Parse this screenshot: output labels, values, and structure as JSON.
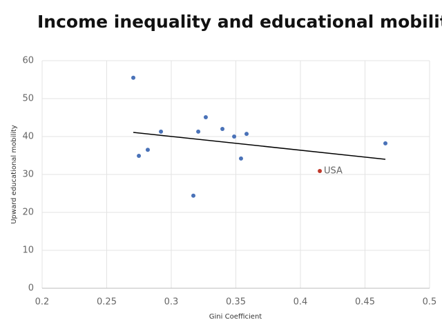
{
  "chart_data": {
    "type": "scatter",
    "title": "Income inequality and educational mobility",
    "x_label": "Gini Coefficient",
    "y_label": "Upward educational mobility",
    "xlim": [
      0.2,
      0.5
    ],
    "xticks": [
      0.2,
      0.25,
      0.3,
      0.35,
      0.4,
      0.45,
      0.5
    ],
    "ylim": [
      0,
      60
    ],
    "yticks": [
      0,
      10,
      20,
      30,
      40,
      50,
      60
    ],
    "grid": true,
    "series": [
      {
        "color": "#4a72b8",
        "x": [
          0.2706,
          0.2749,
          0.2818,
          0.292,
          0.3171,
          0.3209,
          0.3267,
          0.3396,
          0.3487,
          0.354,
          0.3583,
          0.4658
        ],
        "values": [
          55.5,
          34.9,
          36.5,
          41.3,
          24.4,
          41.3,
          45.1,
          42.0,
          40.0,
          34.2,
          40.7,
          38.2
        ]
      },
      {
        "name": "USA",
        "color": "#c0392b",
        "x": [
          0.415
        ],
        "values": [
          30.9
        ]
      }
    ],
    "trendline": {
      "color": "#000000",
      "x": [
        0.2706,
        0.4658
      ],
      "values": [
        41.1,
        34.0
      ]
    }
  }
}
